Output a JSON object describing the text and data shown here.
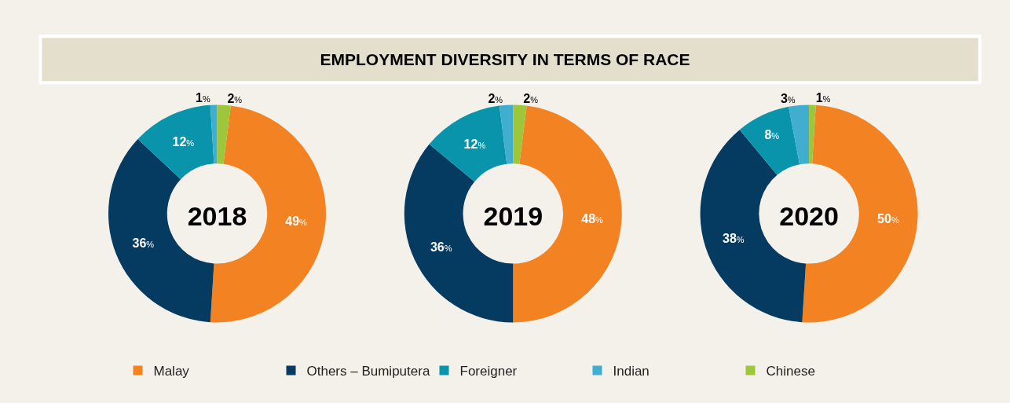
{
  "chart_data": [
    {
      "type": "donut",
      "title": "2018",
      "annotations": [
        "EMPLOYMENT DIVERSITY IN TERMS OF RACE"
      ],
      "categories": [
        "Malay",
        "Others – Bumiputera",
        "Foreigner",
        "Indian",
        "Chinese"
      ],
      "values": [
        49,
        36,
        12,
        1,
        2
      ],
      "value_labels": [
        "49%",
        "36%",
        "12%",
        "1%",
        "2%"
      ],
      "colors": [
        "#f28222",
        "#053b61",
        "#0a94ab",
        "#41aed0",
        "#9dc63b"
      ],
      "legend": "bottom"
    },
    {
      "type": "donut",
      "title": "2019",
      "categories": [
        null,
        null,
        null,
        null,
        null
      ],
      "values": [
        48,
        36,
        12,
        2,
        2
      ],
      "value_labels": [
        "48%",
        "36%",
        "12%",
        "2%",
        "2%"
      ],
      "colors": [
        "#f28222",
        "#053b61",
        "#0a94ab",
        "#41aed0",
        "#9dc63b"
      ]
    },
    {
      "type": "donut",
      "title": "2020",
      "categories": [
        null,
        null,
        null,
        null,
        null
      ],
      "values": [
        50,
        38,
        8,
        3,
        1
      ],
      "value_labels": [
        "50%",
        "38%",
        "8%",
        "3%",
        "1%"
      ],
      "colors": [
        "#f28222",
        "#053b61",
        "#0a94ab",
        "#41aed0",
        "#9dc63b"
      ]
    }
  ]
}
